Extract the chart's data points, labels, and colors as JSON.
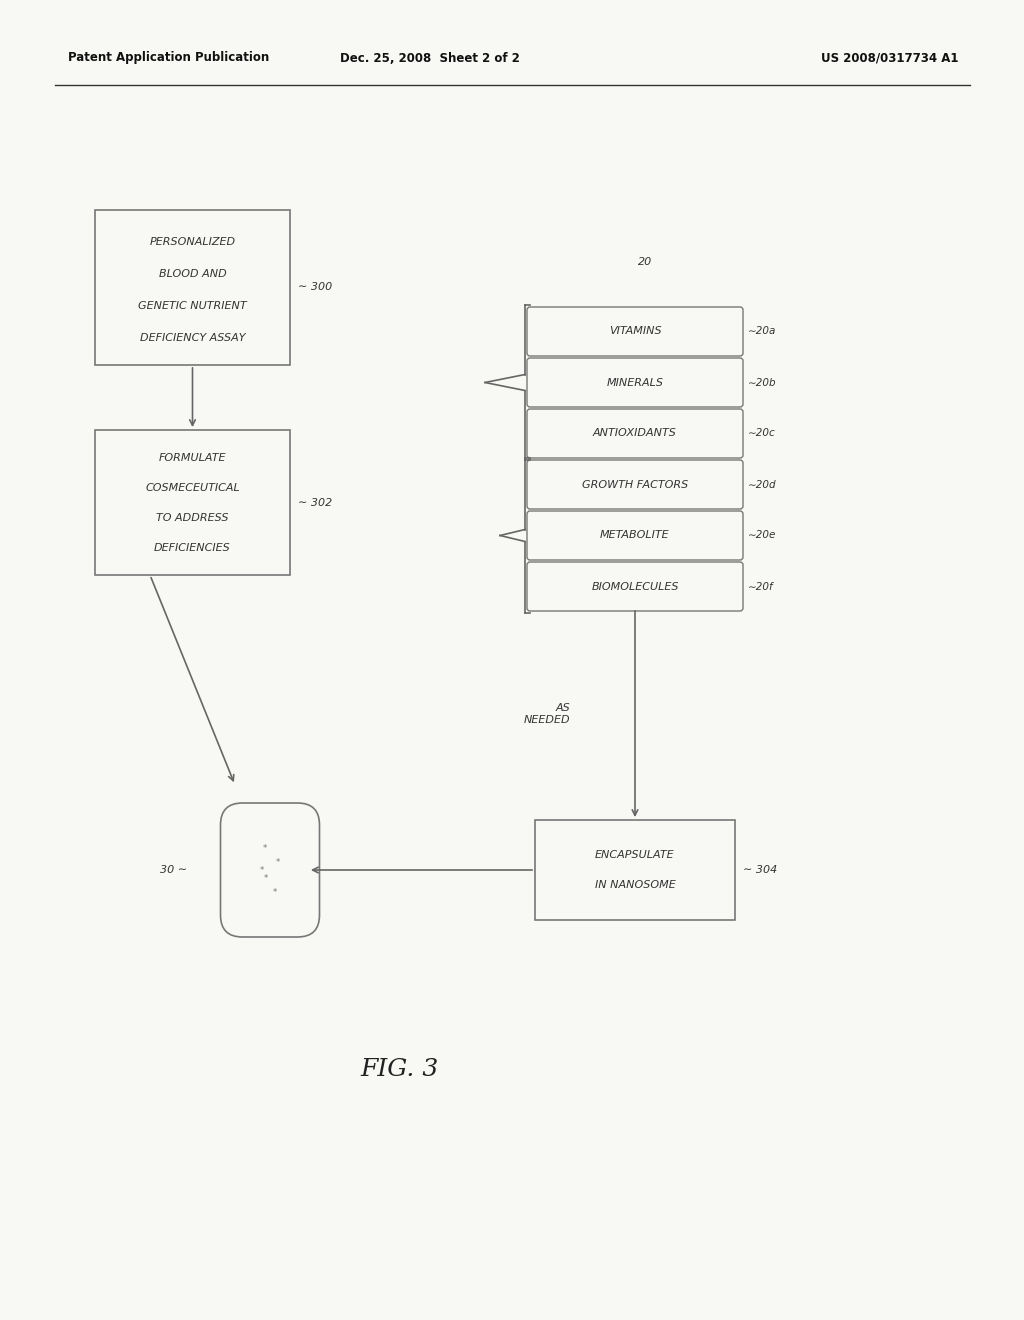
{
  "bg_color": "#f8f8f5",
  "header_left": "Patent Application Publication",
  "header_mid": "Dec. 25, 2008  Sheet 2 of 2",
  "header_right": "US 2008/0317734 A1",
  "fig_label": "FIG. 3",
  "box300_lines": [
    "PERSONALIZED",
    "BLOOD AND",
    "GENETIC NUTRIENT",
    "DEFICIENCY ASSAY"
  ],
  "box300_label": "300",
  "box302_lines": [
    "FORMULATE",
    "COSMECEUTICAL",
    "TO ADDRESS",
    "DEFICIENCIES"
  ],
  "box302_label": "302",
  "box304_lines": [
    "ENCAPSULATE",
    "IN NANOSOME"
  ],
  "box304_label": "304",
  "box30_label": "30",
  "group20_label": "20",
  "items": [
    "VITAMINS",
    "MINERALS",
    "ANTIOXIDANTS",
    "GROWTH FACTORS",
    "METABOLITE",
    "BIOMOLECULES"
  ],
  "item_labels": [
    "20a",
    "20b",
    "20c",
    "20d",
    "20e",
    "20f"
  ],
  "as_needed_text": "AS\nNEEDED",
  "line_color": "#666666",
  "text_color": "#333333",
  "box_ec": "#777777",
  "header_line_color": "#333333"
}
